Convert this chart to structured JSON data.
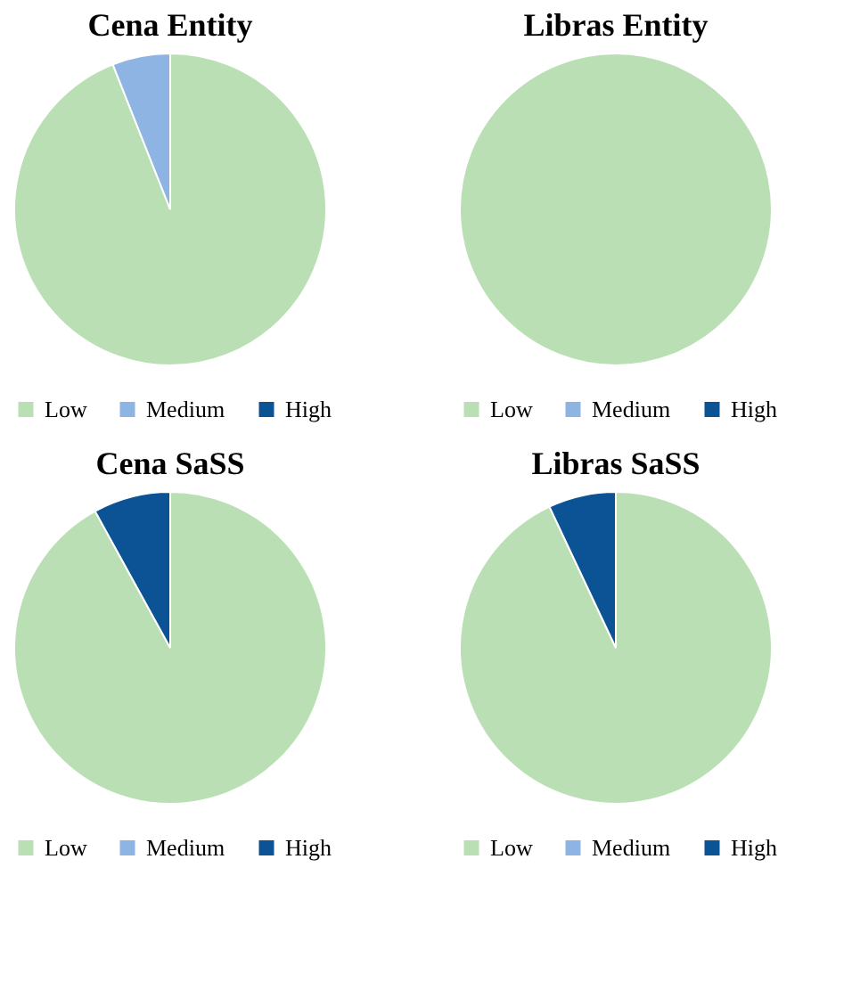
{
  "chart_data": [
    {
      "type": "pie",
      "title": "Cena Entity",
      "categories": [
        "Low",
        "Medium",
        "High"
      ],
      "values": [
        94,
        6,
        0
      ],
      "colors": [
        "#bbdfb5",
        "#8eb4e3",
        "#0b5394"
      ],
      "legend": "bottom"
    },
    {
      "type": "pie",
      "title": "Libras Entity",
      "categories": [
        "Low",
        "Medium",
        "High"
      ],
      "values": [
        100,
        0,
        0
      ],
      "colors": [
        "#bbdfb5",
        "#8eb4e3",
        "#0b5394"
      ],
      "legend": "bottom"
    },
    {
      "type": "pie",
      "title": "Cena SaSS",
      "categories": [
        "Low",
        "Medium",
        "High"
      ],
      "values": [
        92,
        0,
        8
      ],
      "colors": [
        "#bbdfb5",
        "#8eb4e3",
        "#0b5394"
      ],
      "legend": "bottom"
    },
    {
      "type": "pie",
      "title": "Libras SaSS",
      "categories": [
        "Low",
        "Medium",
        "High"
      ],
      "values": [
        93,
        0,
        7
      ],
      "colors": [
        "#bbdfb5",
        "#8eb4e3",
        "#0b5394"
      ],
      "legend": "bottom"
    }
  ]
}
